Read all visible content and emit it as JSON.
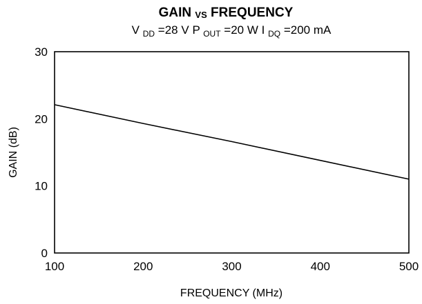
{
  "chart_data": {
    "type": "line",
    "title": {
      "before": "GAIN",
      "vs": "VS",
      "after": "FREQUENCY"
    },
    "subtitle": {
      "vdd_main": "V",
      "vdd_sub": "DD",
      "vdd_value": "=28 V",
      "pout_main": "P",
      "pout_sub": "OUT",
      "pout_value": "=20 W",
      "idq_main": "I",
      "idq_sub": "DQ",
      "idq_value": "=200 mA"
    },
    "xlabel": "FREQUENCY (MHz)",
    "ylabel": "GAIN (dB)",
    "xlim": [
      100,
      500
    ],
    "ylim": [
      0,
      30
    ],
    "xticks": [
      100,
      200,
      300,
      400,
      500
    ],
    "yticks": [
      0,
      10,
      20,
      30
    ],
    "grid": false,
    "series": [
      {
        "x": [
          100,
          200,
          300,
          400,
          500
        ],
        "values": [
          22.1,
          19.3,
          16.6,
          13.8,
          11.0
        ]
      }
    ],
    "line_color": "#000000"
  }
}
